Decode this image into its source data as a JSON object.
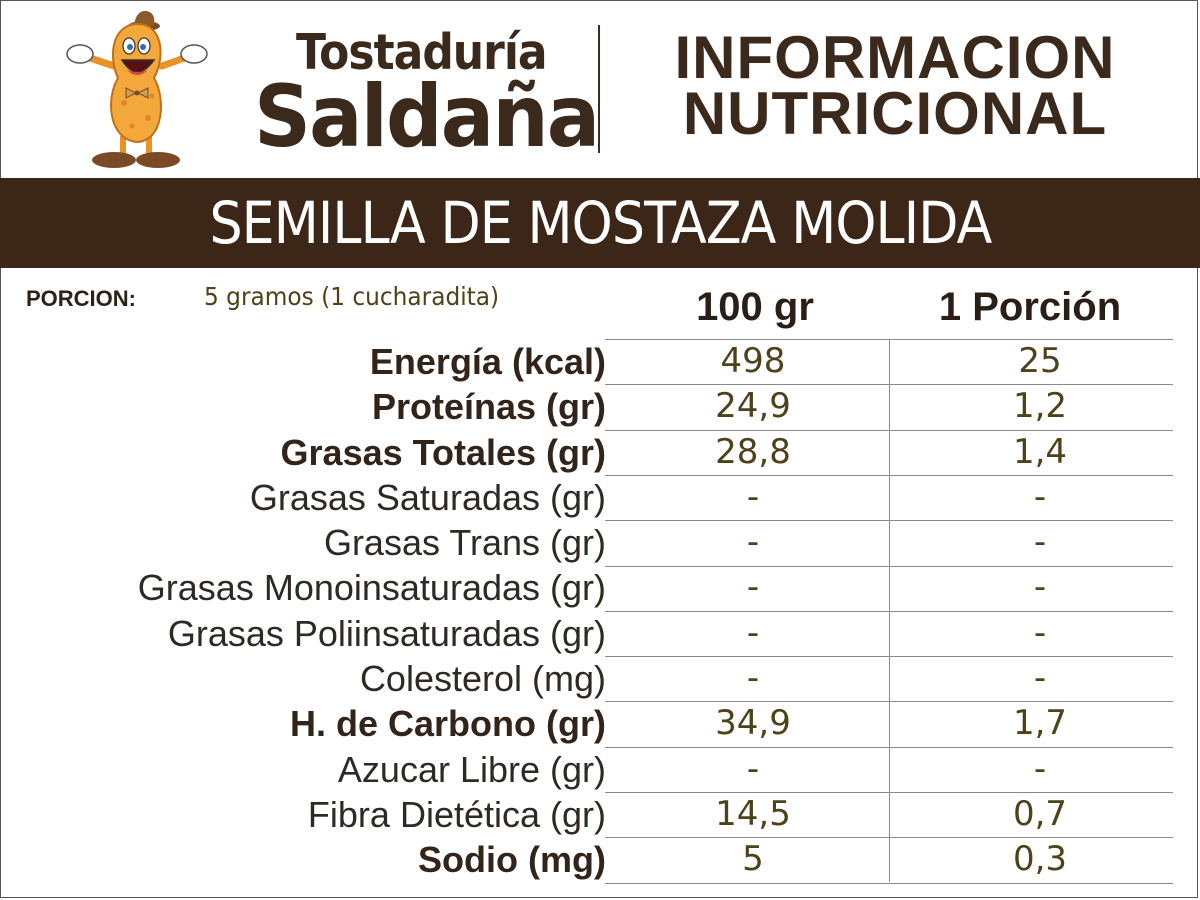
{
  "brand": {
    "line1": "Tostaduría",
    "line2": "Saldaña",
    "mascot_icon": "peanut-mascot-icon"
  },
  "header": {
    "title_line1": "INFORMACION",
    "title_line2": "NUTRICIONAL"
  },
  "product": {
    "name": "SEMILLA DE MOSTAZA MOLIDA"
  },
  "portion": {
    "label": "PORCION:",
    "value": "5 gramos (1 cucharadita)"
  },
  "columns": {
    "per_100": "100 gr",
    "per_portion": "1 Porción"
  },
  "rows": [
    {
      "label": "Energía (kcal)",
      "bold": true,
      "per_100": "498",
      "per_portion": "25"
    },
    {
      "label": "Proteínas (gr)",
      "bold": true,
      "per_100": "24,9",
      "per_portion": "1,2"
    },
    {
      "label": "Grasas Totales (gr)",
      "bold": true,
      "per_100": "28,8",
      "per_portion": "1,4"
    },
    {
      "label": "Grasas Saturadas (gr)",
      "bold": false,
      "per_100": "-",
      "per_portion": "-"
    },
    {
      "label": "Grasas Trans (gr)",
      "bold": false,
      "per_100": "-",
      "per_portion": "-"
    },
    {
      "label": "Grasas Monoinsaturadas (gr)",
      "bold": false,
      "per_100": "-",
      "per_portion": "-"
    },
    {
      "label": "Grasas Poliinsaturadas (gr)",
      "bold": false,
      "per_100": "-",
      "per_portion": "-"
    },
    {
      "label": "Colesterol (mg)",
      "bold": false,
      "per_100": "-",
      "per_portion": "-"
    },
    {
      "label": "H. de Carbono (gr)",
      "bold": true,
      "per_100": "34,9",
      "per_portion": "1,7"
    },
    {
      "label": "Azucar Libre (gr)",
      "bold": false,
      "per_100": "-",
      "per_portion": "-"
    },
    {
      "label": "Fibra Dietética (gr)",
      "bold": false,
      "per_100": "14,5",
      "per_portion": "0,7"
    },
    {
      "label": "Sodio (mg)",
      "bold": true,
      "per_100": "5",
      "per_portion": "0,3"
    }
  ],
  "colors": {
    "brand_brown": "#3b2a1c",
    "banner_bg": "#3b2618",
    "value_text": "#4d4219",
    "mascot_orange": "#f0a030"
  }
}
